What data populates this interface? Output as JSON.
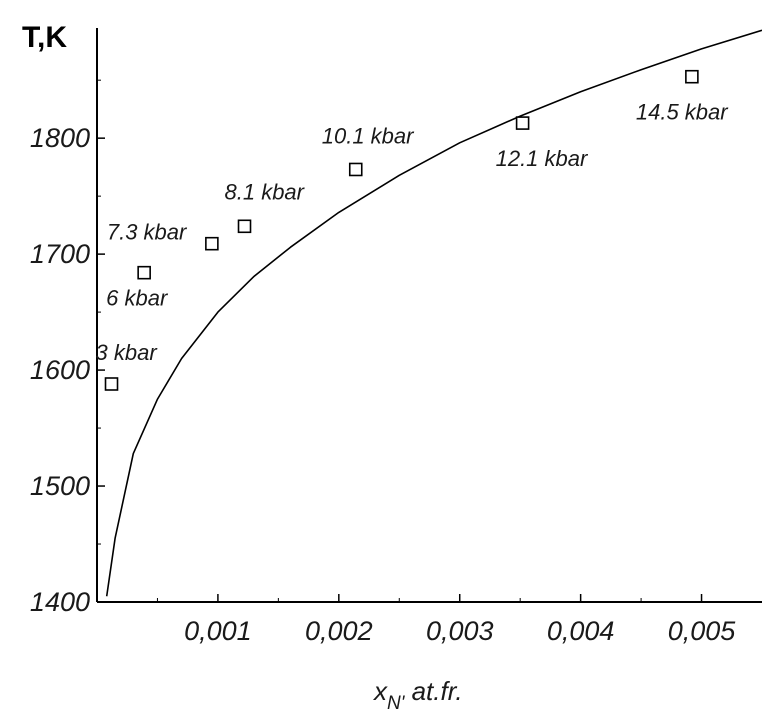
{
  "chart_data": {
    "type": "scatter",
    "ylabel": "T,K",
    "xlabel_main": "x",
    "xlabel_sub": "N'",
    "xlabel_rest": " at.fr.",
    "xlim": [
      0.0,
      0.0055
    ],
    "ylim": [
      1400,
      1895
    ],
    "x_ticks": [
      0.001,
      0.002,
      0.003,
      0.004,
      0.005
    ],
    "x_tick_labels": [
      "0,001",
      "0,002",
      "0,003",
      "0,004",
      "0,005"
    ],
    "y_ticks": [
      1400,
      1500,
      1600,
      1700,
      1800
    ],
    "y_tick_labels": [
      "1400",
      "1500",
      "1600",
      "1700",
      "1800"
    ],
    "grid": false,
    "points": [
      {
        "x": 0.00012,
        "y": 1588,
        "label": "3 kbar"
      },
      {
        "x": 0.00039,
        "y": 1684,
        "label": "6 kbar"
      },
      {
        "x": 0.00095,
        "y": 1709,
        "label": "7.3 kbar"
      },
      {
        "x": 0.00122,
        "y": 1724,
        "label": "8.1 kbar"
      },
      {
        "x": 0.00214,
        "y": 1773,
        "label": "10.1 kbar"
      },
      {
        "x": 0.00352,
        "y": 1813,
        "label": "12.1 kbar"
      },
      {
        "x": 0.00492,
        "y": 1853,
        "label": "14.5 kbar"
      }
    ],
    "curve": {
      "x": [
        8e-05,
        0.00015,
        0.0003,
        0.0005,
        0.0007,
        0.001,
        0.0013,
        0.0016,
        0.002,
        0.0025,
        0.003,
        0.0035,
        0.004,
        0.0045,
        0.005,
        0.0055
      ],
      "y": [
        1405,
        1455,
        1528,
        1575,
        1610,
        1650,
        1681,
        1706,
        1736,
        1768,
        1796,
        1819,
        1840,
        1859,
        1877,
        1893
      ]
    }
  }
}
